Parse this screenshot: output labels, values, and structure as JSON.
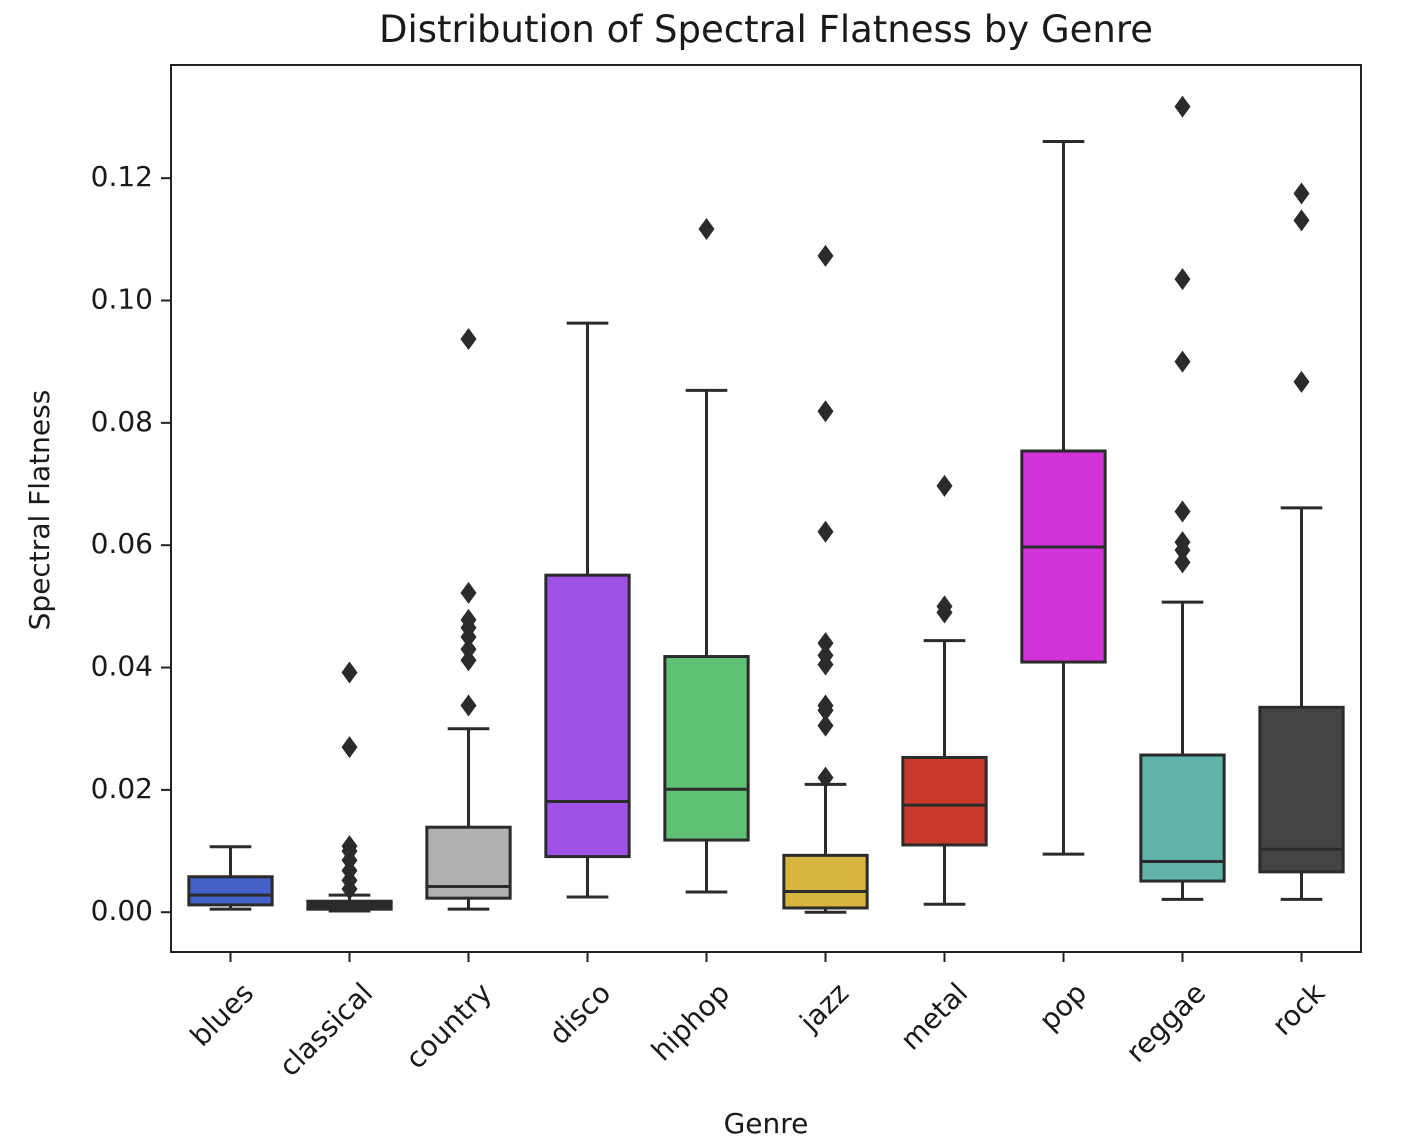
{
  "chart_data": {
    "type": "box",
    "title": "Distribution of Spectral Flatness by Genre",
    "xlabel": "Genre",
    "ylabel": "Spectral Flatness",
    "ylim": [
      -0.0065,
      0.1385
    ],
    "yticks": [
      0.0,
      0.02,
      0.04,
      0.06,
      0.08,
      0.1,
      0.12
    ],
    "ytick_labels": [
      "0.00",
      "0.02",
      "0.04",
      "0.06",
      "0.08",
      "0.10",
      "0.12"
    ],
    "grid": false,
    "categories": [
      "blues",
      "classical",
      "country",
      "disco",
      "hiphop",
      "jazz",
      "metal",
      "pop",
      "reggae",
      "rock"
    ],
    "colors": [
      "#4461c7",
      "#2b2b2b",
      "#b0b0b0",
      "#a052e6",
      "#60c073",
      "#d6b541",
      "#c9392c",
      "#d133d8",
      "#5fb3a8",
      "#444444"
    ],
    "boxes": [
      {
        "whisker_low": 0.0005,
        "q1": 0.0012,
        "median": 0.0028,
        "q3": 0.0058,
        "whisker_high": 0.0107,
        "outliers": []
      },
      {
        "whisker_low": 0.0002,
        "q1": 0.0005,
        "median": 0.0011,
        "q3": 0.0018,
        "whisker_high": 0.0028,
        "outliers": [
          0.0038,
          0.0052,
          0.0068,
          0.0085,
          0.01,
          0.0108,
          0.027,
          0.0392
        ]
      },
      {
        "whisker_low": 0.0005,
        "q1": 0.0023,
        "median": 0.0042,
        "q3": 0.0139,
        "whisker_high": 0.03,
        "outliers": [
          0.0338,
          0.0412,
          0.043,
          0.045,
          0.0465,
          0.0478,
          0.0522,
          0.0937
        ]
      },
      {
        "whisker_low": 0.0025,
        "q1": 0.0091,
        "median": 0.0181,
        "q3": 0.0551,
        "whisker_high": 0.0963,
        "outliers": []
      },
      {
        "whisker_low": 0.0033,
        "q1": 0.0118,
        "median": 0.0201,
        "q3": 0.0418,
        "whisker_high": 0.0853,
        "outliers": [
          0.1117
        ]
      },
      {
        "whisker_low": 0.0,
        "q1": 0.0007,
        "median": 0.0034,
        "q3": 0.0093,
        "whisker_high": 0.0209,
        "outliers": [
          0.022,
          0.0305,
          0.033,
          0.0338,
          0.0405,
          0.042,
          0.044,
          0.0622,
          0.0819,
          0.1073
        ]
      },
      {
        "whisker_low": 0.0013,
        "q1": 0.011,
        "median": 0.0175,
        "q3": 0.0253,
        "whisker_high": 0.0444,
        "outliers": [
          0.049,
          0.05,
          0.0697
        ]
      },
      {
        "whisker_low": 0.0095,
        "q1": 0.0409,
        "median": 0.0597,
        "q3": 0.0754,
        "whisker_high": 0.126,
        "outliers": []
      },
      {
        "whisker_low": 0.0021,
        "q1": 0.0051,
        "median": 0.0083,
        "q3": 0.0257,
        "whisker_high": 0.0507,
        "outliers": [
          0.0572,
          0.0592,
          0.0605,
          0.0655,
          0.09,
          0.1035,
          0.1317
        ]
      },
      {
        "whisker_low": 0.0021,
        "q1": 0.0066,
        "median": 0.0103,
        "q3": 0.0335,
        "whisker_high": 0.0661,
        "outliers": [
          0.0867,
          0.1131,
          0.1175
        ]
      }
    ]
  }
}
